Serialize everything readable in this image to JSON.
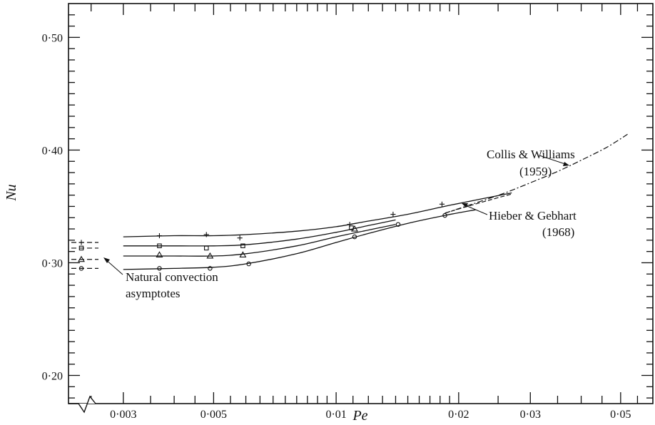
{
  "chart_data": {
    "type": "line",
    "title": "",
    "xlabel": "Pe",
    "ylabel": "Nu",
    "xscale": "log",
    "xlim": [
      0.0022,
      0.06
    ],
    "ylim": [
      0.175,
      0.53
    ],
    "x_ticks": [
      {
        "value": 0.003,
        "label": "0·003"
      },
      {
        "value": 0.005,
        "label": "0·005"
      },
      {
        "value": 0.01,
        "label": "0·01"
      },
      {
        "value": 0.02,
        "label": "0·02"
      },
      {
        "value": 0.03,
        "label": "0·03"
      },
      {
        "value": 0.05,
        "label": "0·05"
      }
    ],
    "y_ticks": [
      {
        "value": 0.2,
        "label": "0·20"
      },
      {
        "value": 0.3,
        "label": "0·30"
      },
      {
        "value": 0.4,
        "label": "0·40"
      },
      {
        "value": 0.5,
        "label": "0·50"
      }
    ],
    "grid": false,
    "axis_break": "x",
    "series": [
      {
        "marker": "plus",
        "asymptote": 0.318,
        "points": [
          [
            0.00368,
            0.324
          ],
          [
            0.0048,
            0.325
          ],
          [
            0.0058,
            0.322
          ],
          [
            0.0108,
            0.334
          ],
          [
            0.0138,
            0.343
          ],
          [
            0.0182,
            0.352
          ]
        ],
        "curve": [
          [
            0.003,
            0.323
          ],
          [
            0.004,
            0.324
          ],
          [
            0.005,
            0.324
          ],
          [
            0.006,
            0.325
          ],
          [
            0.008,
            0.328
          ],
          [
            0.01,
            0.332
          ],
          [
            0.012,
            0.337
          ],
          [
            0.015,
            0.343
          ],
          [
            0.019,
            0.351
          ],
          [
            0.023,
            0.357
          ],
          [
            0.027,
            0.362
          ]
        ]
      },
      {
        "marker": "square",
        "asymptote": 0.313,
        "points": [
          [
            0.00368,
            0.315
          ],
          [
            0.0048,
            0.313
          ],
          [
            0.0059,
            0.315
          ],
          [
            0.0109,
            0.331
          ]
        ],
        "curve": [
          [
            0.003,
            0.315
          ],
          [
            0.004,
            0.315
          ],
          [
            0.005,
            0.315
          ],
          [
            0.006,
            0.316
          ],
          [
            0.008,
            0.321
          ],
          [
            0.01,
            0.327
          ],
          [
            0.012,
            0.333
          ],
          [
            0.014,
            0.338
          ]
        ]
      },
      {
        "marker": "triangle",
        "asymptote": 0.303,
        "points": [
          [
            0.00368,
            0.307
          ],
          [
            0.0049,
            0.306
          ],
          [
            0.0059,
            0.307
          ],
          [
            0.0111,
            0.33
          ]
        ],
        "curve": [
          [
            0.003,
            0.306
          ],
          [
            0.004,
            0.306
          ],
          [
            0.005,
            0.306
          ],
          [
            0.006,
            0.308
          ],
          [
            0.008,
            0.315
          ],
          [
            0.01,
            0.323
          ],
          [
            0.012,
            0.329
          ],
          [
            0.014,
            0.334
          ]
        ]
      },
      {
        "marker": "circle",
        "asymptote": 0.295,
        "points": [
          [
            0.00368,
            0.295
          ],
          [
            0.0049,
            0.295
          ],
          [
            0.0061,
            0.299
          ],
          [
            0.0111,
            0.323
          ],
          [
            0.0142,
            0.334
          ],
          [
            0.0185,
            0.342
          ]
        ],
        "curve": [
          [
            0.003,
            0.294
          ],
          [
            0.004,
            0.295
          ],
          [
            0.005,
            0.296
          ],
          [
            0.006,
            0.299
          ],
          [
            0.008,
            0.308
          ],
          [
            0.01,
            0.318
          ],
          [
            0.012,
            0.326
          ],
          [
            0.015,
            0.335
          ],
          [
            0.0185,
            0.342
          ],
          [
            0.022,
            0.347
          ]
        ]
      }
    ],
    "reference_curves": [
      {
        "name": "Collis & Williams (1959)",
        "style": "dash-dot",
        "points": [
          [
            0.0185,
            0.344
          ],
          [
            0.022,
            0.353
          ],
          [
            0.026,
            0.362
          ],
          [
            0.03,
            0.371
          ],
          [
            0.035,
            0.381
          ],
          [
            0.04,
            0.391
          ],
          [
            0.046,
            0.402
          ],
          [
            0.052,
            0.414
          ]
        ]
      },
      {
        "name": "Hieber & Gebhart (1968)",
        "style": "dashed",
        "points": [
          [
            0.0185,
            0.344
          ],
          [
            0.021,
            0.35
          ],
          [
            0.024,
            0.356
          ],
          [
            0.027,
            0.361
          ]
        ]
      }
    ],
    "annotations": [
      {
        "id": "natural",
        "lines": [
          "Natural convection",
          "asymptotes"
        ]
      },
      {
        "id": "collis",
        "lines": [
          "Collis & Williams",
          "(1959)"
        ]
      },
      {
        "id": "hieber",
        "lines": [
          "Hieber & Gebhart",
          "(1968)"
        ]
      }
    ]
  }
}
